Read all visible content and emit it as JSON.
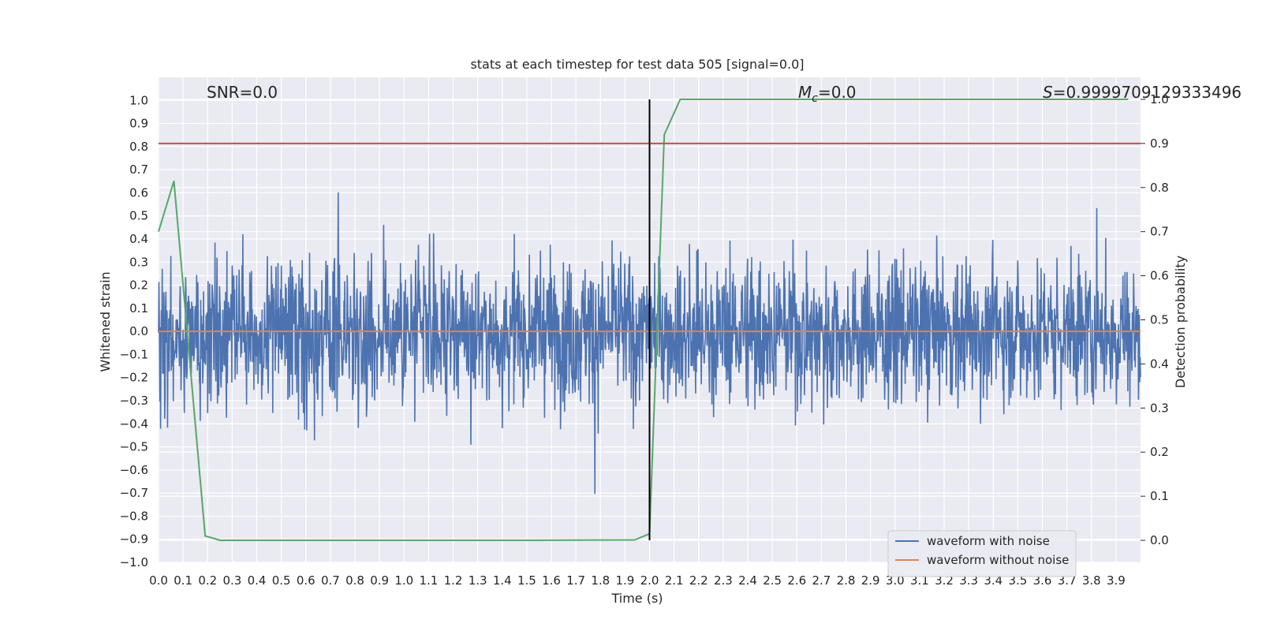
{
  "chart_data": {
    "type": "line",
    "title": "stats at each timestep for test data 505 [signal=0.0]",
    "xlabel": "Time (s)",
    "ylabel": "Whitened strain",
    "y2label": "Detection probability",
    "xlim": [
      0.0,
      4.0
    ],
    "ylim": [
      -1.0,
      1.1
    ],
    "y2lim": [
      -0.05,
      1.05
    ],
    "xticks": [
      "0.0",
      "0.1",
      "0.2",
      "0.3",
      "0.4",
      "0.5",
      "0.6",
      "0.7",
      "0.8",
      "0.9",
      "1.0",
      "1.1",
      "1.2",
      "1.3",
      "1.4",
      "1.5",
      "1.6",
      "1.7",
      "1.8",
      "1.9",
      "2.0",
      "2.1",
      "2.2",
      "2.3",
      "2.4",
      "2.5",
      "2.6",
      "2.7",
      "2.8",
      "2.9",
      "3.0",
      "3.1",
      "3.2",
      "3.3",
      "3.4",
      "3.5",
      "3.6",
      "3.7",
      "3.8",
      "3.9"
    ],
    "yticks": [
      "1.0",
      "0.9",
      "0.8",
      "0.7",
      "0.6",
      "0.5",
      "0.4",
      "0.3",
      "0.2",
      "0.1",
      "0.0",
      "−0.1",
      "−0.2",
      "−0.3",
      "−0.4",
      "−0.5",
      "−0.6",
      "−0.7",
      "−0.8",
      "−0.9",
      "−1.0"
    ],
    "y2ticks": [
      "1.0",
      "0.9",
      "0.8",
      "0.7",
      "0.6",
      "0.5",
      "0.4",
      "0.3",
      "0.2",
      "0.1",
      "0.0"
    ],
    "grid": true,
    "legend_position": "lower-right",
    "annotations": {
      "snr": "SNR=0.0",
      "mc_symbol": "M",
      "mc_sub": "c",
      "mc_value": "=0.0",
      "s_symbol": "S",
      "s_value": "=0.9999709129333496"
    },
    "series": [
      {
        "name": "waveform with noise",
        "color": "#4c72b0",
        "axis": "left",
        "kind": "noise",
        "amplitude_range": [
          -0.91,
          1.0
        ]
      },
      {
        "name": "waveform without noise",
        "color": "#dd8452",
        "axis": "left",
        "x": [
          0.0,
          4.0
        ],
        "y": [
          0.0,
          0.0
        ]
      },
      {
        "color": "#55a868",
        "axis": "right",
        "x": [
          0.0,
          0.0625,
          0.19,
          0.25,
          0.5,
          1.0,
          1.5,
          1.94,
          2.0,
          2.06,
          2.125,
          2.5,
          3.0,
          3.5,
          3.95
        ],
        "y": [
          0.7,
          0.815,
          0.01,
          0.0,
          0.0,
          0.0,
          0.0,
          0.001,
          0.015,
          0.92,
          1.0,
          1.0,
          1.0,
          1.0,
          1.0
        ]
      },
      {
        "color": "#c44e52",
        "axis": "right",
        "x": [
          0.0,
          4.0
        ],
        "y": [
          0.9,
          0.9
        ]
      },
      {
        "color": "#000000",
        "axis": "right",
        "kind": "vline",
        "x": [
          2.0,
          2.0
        ],
        "y": [
          0.0,
          1.0
        ]
      }
    ]
  }
}
